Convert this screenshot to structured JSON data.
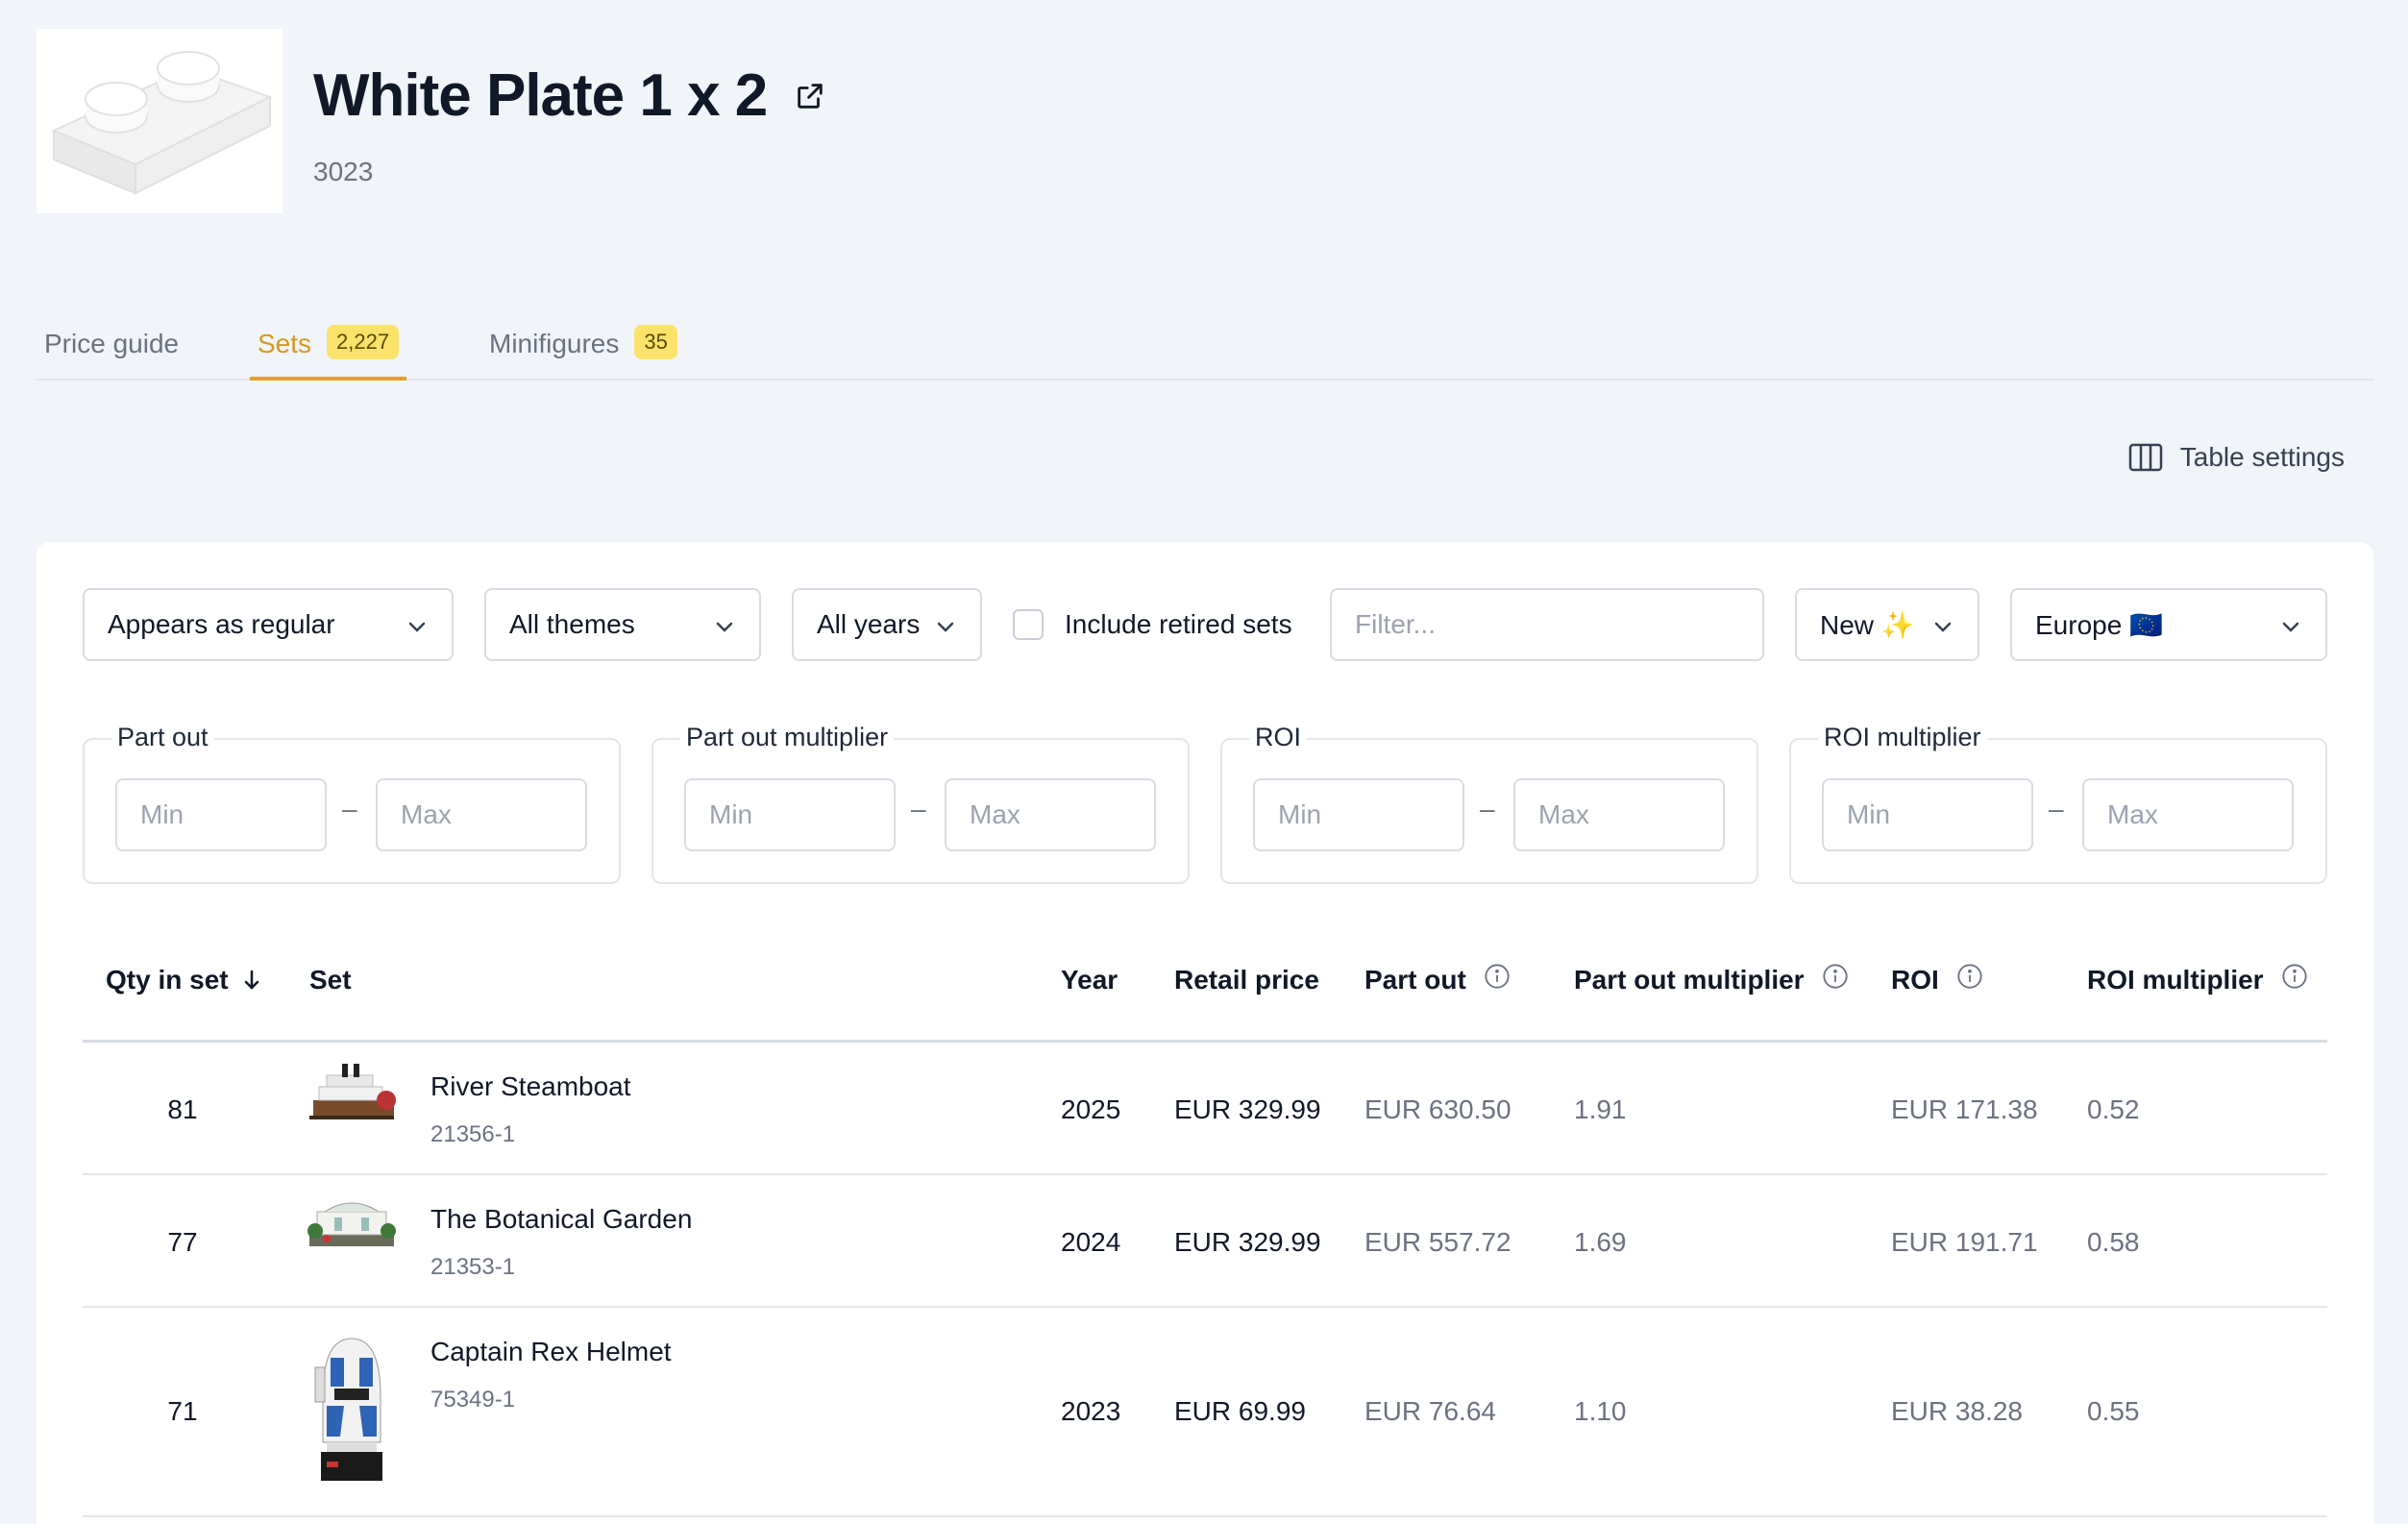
{
  "part": {
    "title": "White Plate 1 x 2",
    "number": "3023"
  },
  "tabs": [
    {
      "label": "Price guide",
      "count": ""
    },
    {
      "label": "Sets",
      "count": "2,227"
    },
    {
      "label": "Minifigures",
      "count": "35"
    }
  ],
  "toolbar": {
    "table_settings_label": "Table settings"
  },
  "filters": {
    "appears_as": "Appears as regular",
    "themes": "All themes",
    "years": "All years",
    "include_retired_label": "Include retired sets",
    "filter_placeholder": "Filter...",
    "condition": "New ✨",
    "region": "Europe 🇪🇺"
  },
  "ranges": [
    {
      "label": "Part out",
      "min_placeholder": "Min",
      "max_placeholder": "Max"
    },
    {
      "label": "Part out multiplier",
      "min_placeholder": "Min",
      "max_placeholder": "Max"
    },
    {
      "label": "ROI",
      "min_placeholder": "Min",
      "max_placeholder": "Max"
    },
    {
      "label": "ROI multiplier",
      "min_placeholder": "Min",
      "max_placeholder": "Max"
    }
  ],
  "table": {
    "columns": {
      "qty": "Qty in set",
      "set": "Set",
      "year": "Year",
      "retail": "Retail price",
      "partout": "Part out",
      "partout_mult": "Part out multiplier",
      "roi": "ROI",
      "roi_mult": "ROI multiplier"
    },
    "rows": [
      {
        "qty": "81",
        "name": "River Steamboat",
        "number": "21356-1",
        "year": "2025",
        "retail": "EUR 329.99",
        "partout": "EUR 630.50",
        "partout_mult": "1.91",
        "roi": "EUR 171.38",
        "roi_mult": "0.52"
      },
      {
        "qty": "77",
        "name": "The Botanical Garden",
        "number": "21353-1",
        "year": "2024",
        "retail": "EUR 329.99",
        "partout": "EUR 557.72",
        "partout_mult": "1.69",
        "roi": "EUR 191.71",
        "roi_mult": "0.58"
      },
      {
        "qty": "71",
        "name": "Captain Rex Helmet",
        "number": "75349-1",
        "year": "2023",
        "retail": "EUR 69.99",
        "partout": "EUR 76.64",
        "partout_mult": "1.10",
        "roi": "EUR 38.28",
        "roi_mult": "0.55"
      }
    ]
  },
  "colors": {
    "accent": "#d69a1f",
    "badge": "#fbe26b",
    "background": "#f1f4f8"
  }
}
